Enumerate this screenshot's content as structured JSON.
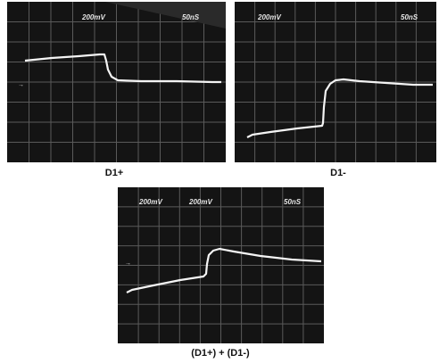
{
  "panels": [
    {
      "id": "d1-plus",
      "caption": "D1+",
      "volts_div": "200mV",
      "time_div": "50nS",
      "marker": "→",
      "trace": "step-down"
    },
    {
      "id": "d1-minus",
      "caption": "D1-",
      "volts_div": "200mV",
      "time_div": "50nS",
      "marker": "",
      "trace": "step-up"
    },
    {
      "id": "d1-sum",
      "caption": "(D1+) + (D1-)",
      "volts_div_a": "200mV",
      "volts_div_b": "200mV",
      "time_div": "50nS",
      "marker": "→",
      "trace": "step-up"
    }
  ],
  "colors": {
    "screen": "#141414",
    "grid": "#5a5a5a",
    "trace": "#f4f4f4",
    "caption": "#111111"
  }
}
